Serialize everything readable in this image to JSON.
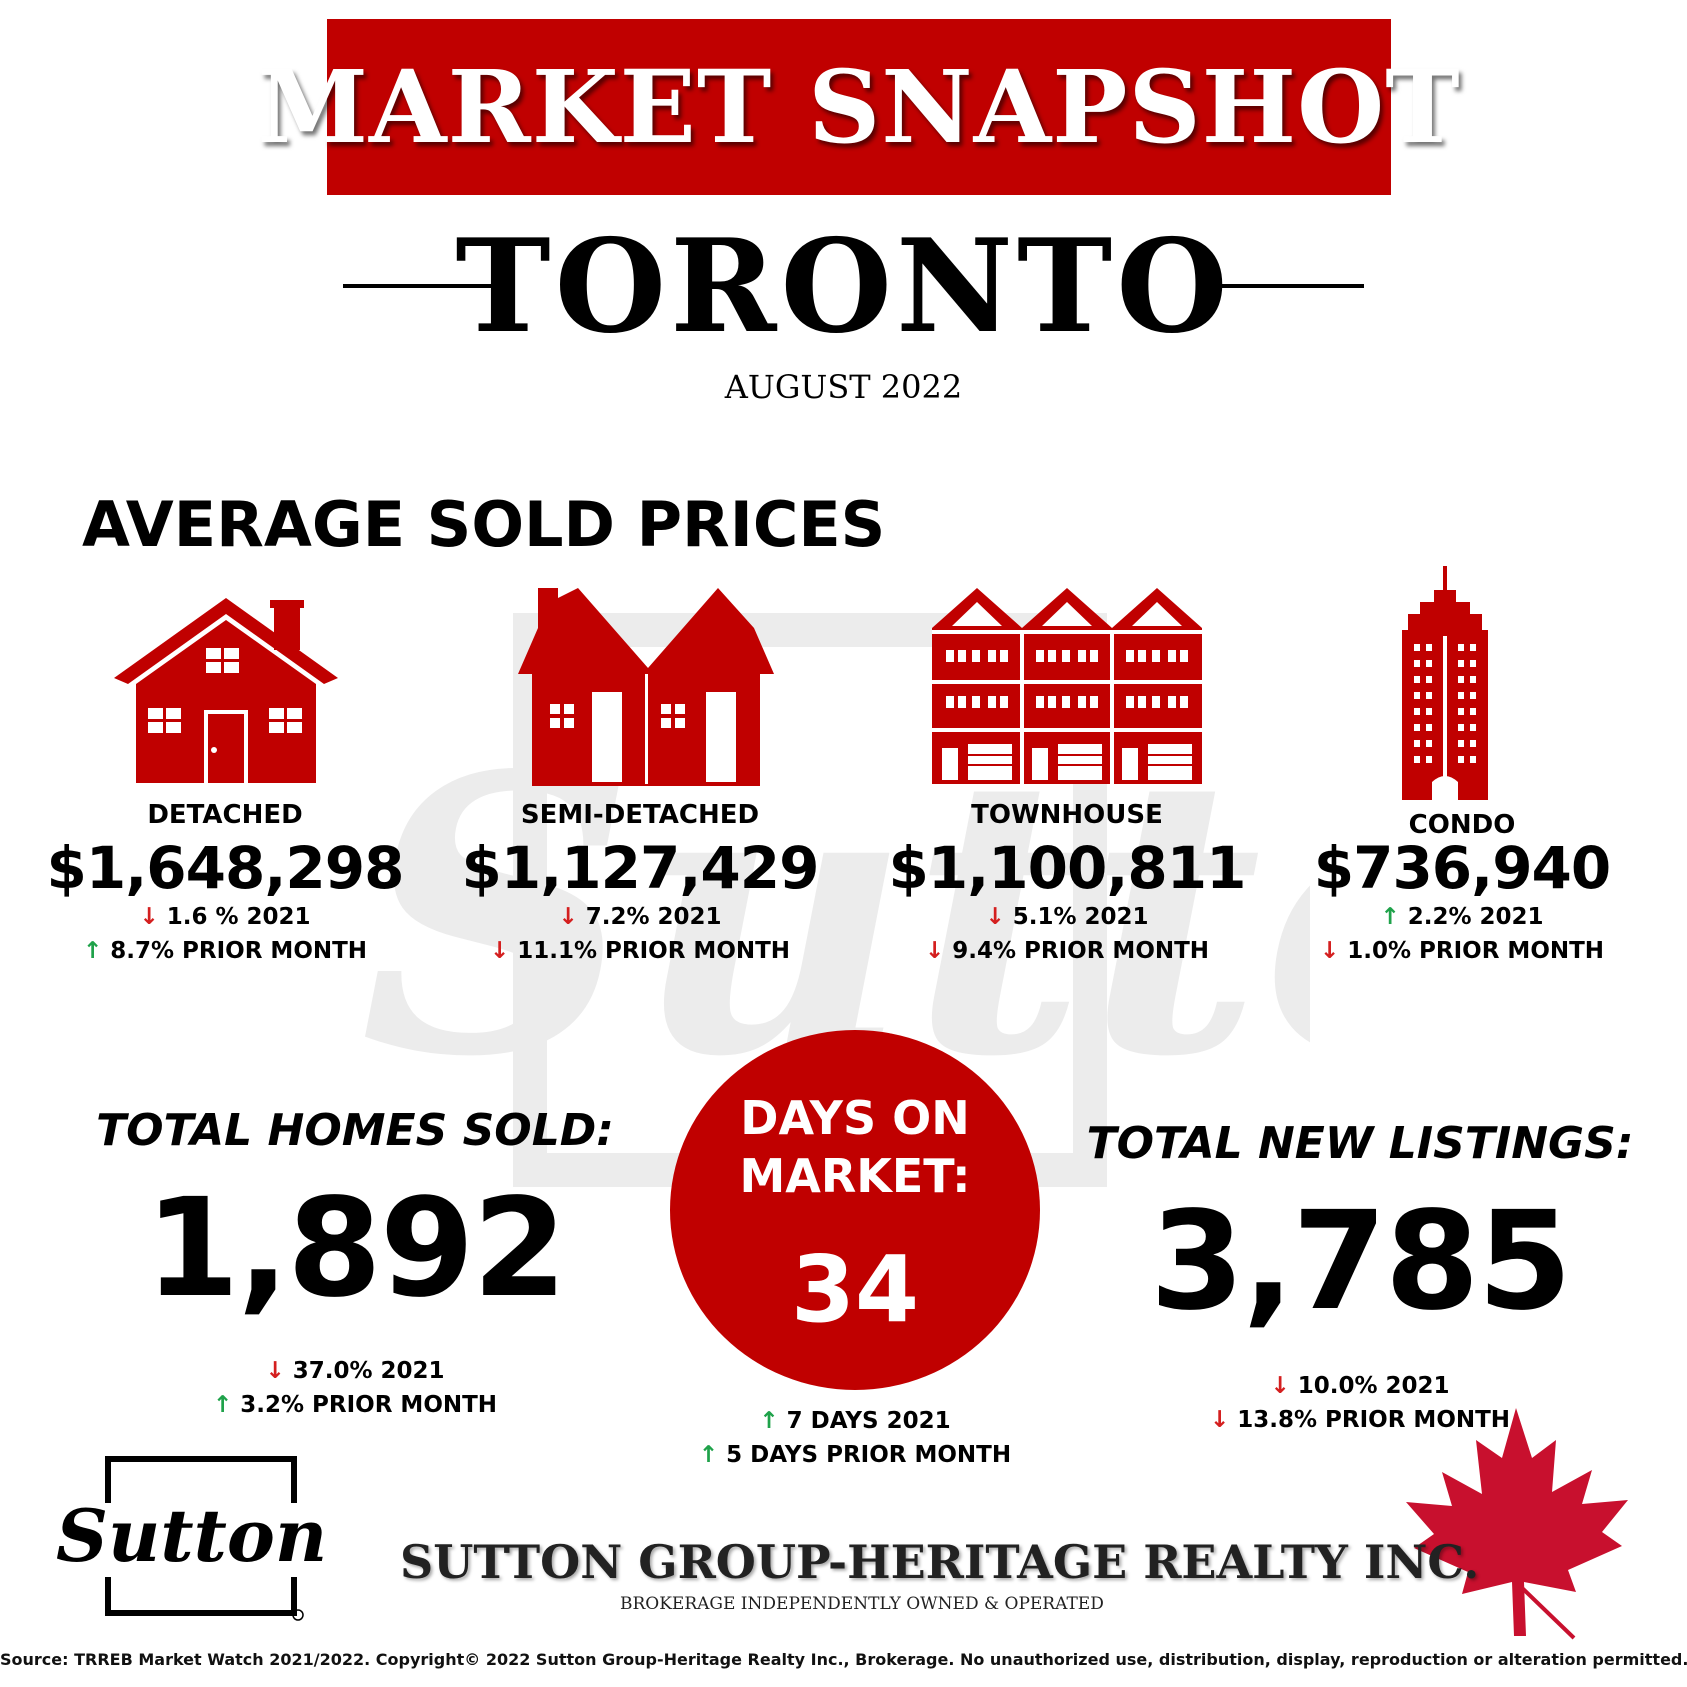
{
  "header": {
    "banner": "MARKET SNAPSHOT",
    "city": "TORONTO",
    "date": "AUGUST 2022"
  },
  "average_prices": {
    "title": "AVERAGE SOLD PRICES",
    "items": [
      {
        "type": "DETACHED",
        "price": "$1,648,298",
        "yoy": {
          "dir": "down",
          "text": "1.6 % 2021"
        },
        "mom": {
          "dir": "up",
          "text": "8.7% PRIOR MONTH"
        }
      },
      {
        "type": "SEMI-DETACHED",
        "price": "$1,127,429",
        "yoy": {
          "dir": "down",
          "text": "7.2% 2021"
        },
        "mom": {
          "dir": "down",
          "text": "11.1% PRIOR MONTH"
        }
      },
      {
        "type": "TOWNHOUSE",
        "price": "$1,100,811",
        "yoy": {
          "dir": "down",
          "text": "5.1% 2021"
        },
        "mom": {
          "dir": "down",
          "text": "9.4% PRIOR MONTH"
        }
      },
      {
        "type": "CONDO",
        "price": "$736,940",
        "yoy": {
          "dir": "up",
          "text": "2.2% 2021"
        },
        "mom": {
          "dir": "down",
          "text": "1.0% PRIOR MONTH"
        }
      }
    ]
  },
  "homes_sold": {
    "title": "TOTAL HOMES SOLD:",
    "value": "1,892",
    "yoy": {
      "dir": "down",
      "text": "37.0% 2021"
    },
    "mom": {
      "dir": "up",
      "text": "3.2% PRIOR MONTH"
    }
  },
  "days_on_market": {
    "title_line1": "DAYS ON",
    "title_line2": "MARKET:",
    "value": "34",
    "yoy": {
      "dir": "up",
      "text": "7 DAYS 2021"
    },
    "mom": {
      "dir": "up",
      "text": "5 DAYS PRIOR MONTH"
    }
  },
  "new_listings": {
    "title": "TOTAL NEW LISTINGS:",
    "value": "3,785",
    "yoy": {
      "dir": "down",
      "text": "10.0% 2021"
    },
    "mom": {
      "dir": "down",
      "text": "13.8% PRIOR MONTH"
    }
  },
  "footer": {
    "logo_text": "Sutton",
    "company": "SUTTON GROUP-HERITAGE REALTY INC.",
    "tagline": "BROKERAGE INDEPENDENTLY OWNED & OPERATED",
    "source": "Source: TRREB Market Watch 2021/2022. Copyright© 2022 Sutton Group-Heritage Realty Inc., Brokerage. No unauthorized use, distribution, display, reproduction or alteration permitted."
  },
  "colors": {
    "brand_red": "#c00000",
    "up_green": "#1fa24a",
    "down_red": "#d41f1f"
  },
  "arrows": {
    "up": "↑",
    "down": "↓"
  }
}
